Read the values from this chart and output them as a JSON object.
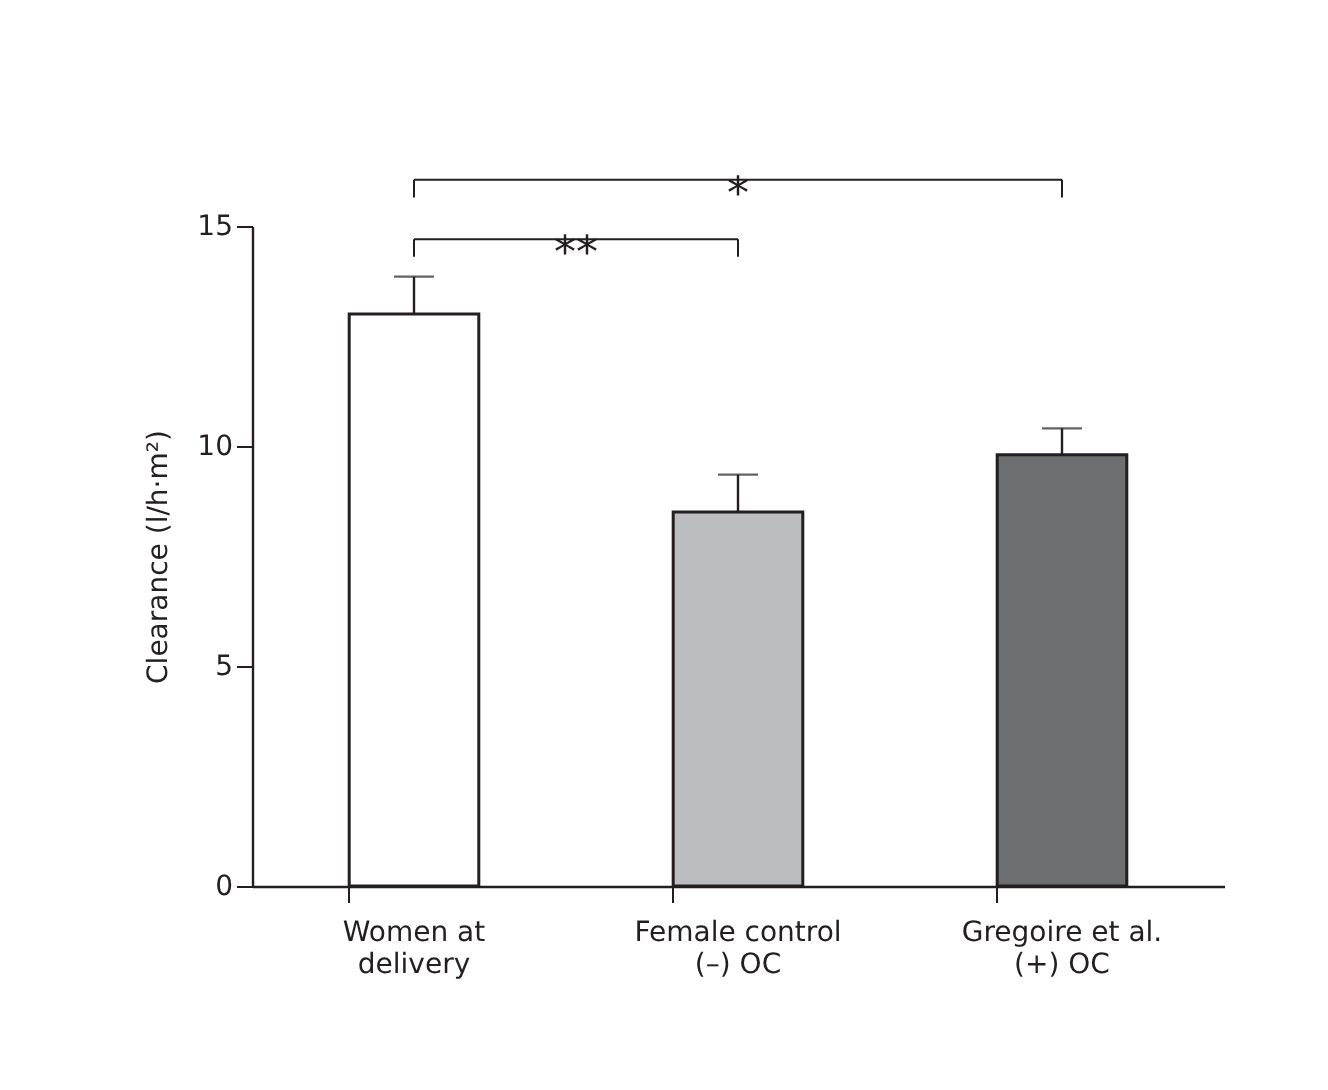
{
  "chart_data": {
    "type": "bar",
    "ylabel": "Clearance (l/h·m²)",
    "categories": [
      "Women at\ndelivery",
      "Female control\n(–) OC",
      "Gregoire et al.\n(+) OC"
    ],
    "values": [
      13.0,
      8.5,
      9.8
    ],
    "colors": [
      "#ffffff",
      "#bcbdc0",
      "#6d6e70"
    ],
    "errors": [
      [
        13.0,
        13.85
      ],
      [
        8.5,
        9.35
      ],
      [
        9.8,
        10.4
      ]
    ],
    "ylim": [
      0,
      15
    ],
    "yticks": [
      0,
      5,
      10,
      15
    ],
    "grid": false,
    "annotations": [
      "**",
      "*"
    ]
  }
}
